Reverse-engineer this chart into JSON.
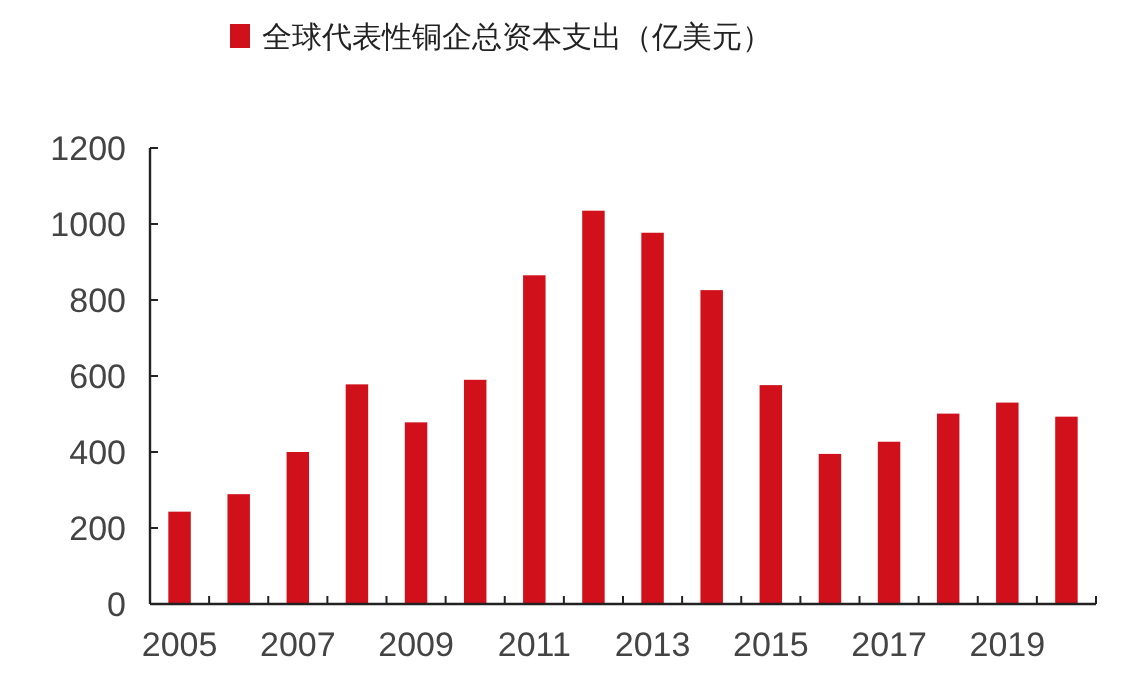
{
  "chart_data": {
    "type": "bar",
    "categories": [
      "2005",
      null,
      "2007",
      null,
      "2009",
      null,
      "2011",
      null,
      "2013",
      null,
      "2015",
      null,
      "2017",
      null,
      "2019",
      null
    ],
    "series": [
      {
        "name": "全球代表性铜企总资本支出（亿美元）",
        "color": "#d0111b",
        "values": [
          243,
          289,
          400,
          578,
          478,
          590,
          865,
          1035,
          977,
          826,
          576,
          395,
          427,
          501,
          530,
          493
        ]
      }
    ],
    "ylim": [
      0,
      1200
    ],
    "yticks": [
      0,
      200,
      400,
      600,
      800,
      1000,
      1200
    ],
    "grid": false,
    "legend": "top"
  }
}
